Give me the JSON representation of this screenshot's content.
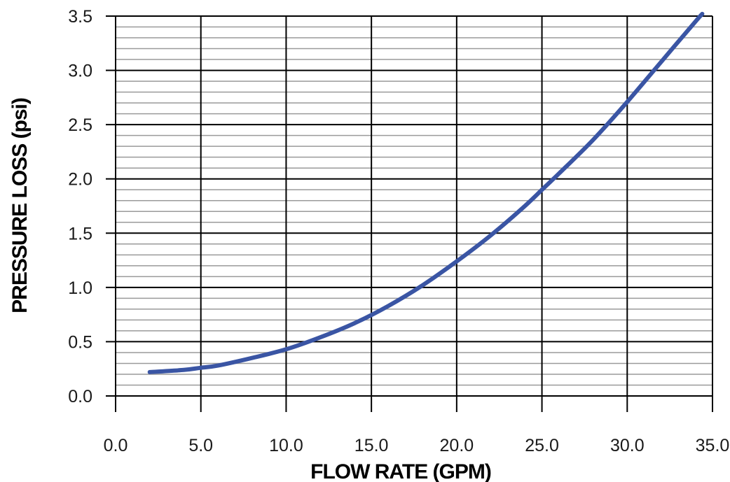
{
  "chart_data": {
    "type": "line",
    "title": "",
    "xlabel": "FLOW RATE (GPM)",
    "ylabel": "PRESSURE LOSS (psi)",
    "xlim": [
      0,
      35
    ],
    "ylim": [
      0,
      3.5
    ],
    "x_ticks": [
      "0.0",
      "5.0",
      "10.0",
      "15.0",
      "20.0",
      "25.0",
      "30.0",
      "35.0"
    ],
    "y_ticks": [
      "0.0",
      "0.5",
      "1.0",
      "1.5",
      "2.0",
      "2.5",
      "3.0",
      "3.5"
    ],
    "x_tick_values": [
      0,
      5,
      10,
      15,
      20,
      25,
      30,
      35
    ],
    "y_tick_values": [
      0,
      0.5,
      1.0,
      1.5,
      2.0,
      2.5,
      3.0,
      3.5
    ],
    "minor_y_step": 0.1,
    "grid": true,
    "series": [
      {
        "color": "#3a55a4",
        "x": [
          2,
          4,
          5,
          6,
          8,
          10,
          12,
          14,
          16,
          18,
          20,
          22,
          24,
          25,
          26,
          28,
          30,
          32,
          34,
          34.4
        ],
        "y": [
          0.22,
          0.24,
          0.26,
          0.28,
          0.35,
          0.43,
          0.54,
          0.67,
          0.83,
          1.02,
          1.24,
          1.48,
          1.75,
          1.9,
          2.05,
          2.36,
          2.71,
          3.08,
          3.45,
          3.52
        ]
      }
    ],
    "colors": {
      "grid_major": "#000000",
      "grid_minor": "#9a9a9a",
      "line": "#3a55a4"
    }
  }
}
